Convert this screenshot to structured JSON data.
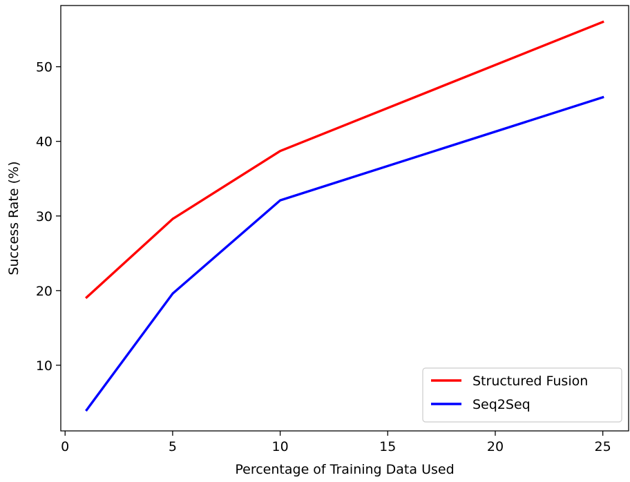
{
  "chart_data": {
    "type": "line",
    "title": "",
    "xlabel": "Percentage of Training Data Used",
    "ylabel": "Success Rate (%)",
    "xlim": [
      -0.2,
      26.2
    ],
    "ylim": [
      1.2,
      58.2
    ],
    "xticks": [
      0,
      5,
      10,
      15,
      20,
      25
    ],
    "yticks": [
      10,
      20,
      30,
      40,
      50
    ],
    "x": [
      1,
      5,
      10,
      25
    ],
    "series": [
      {
        "name": "Structured Fusion",
        "color": "#ff0000",
        "values": [
          19.1,
          29.6,
          38.7,
          56.0
        ]
      },
      {
        "name": "Seq2Seq",
        "color": "#0000ff",
        "values": [
          4.0,
          19.6,
          32.1,
          45.9
        ]
      }
    ],
    "grid": false,
    "legend_position": "lower-right"
  }
}
